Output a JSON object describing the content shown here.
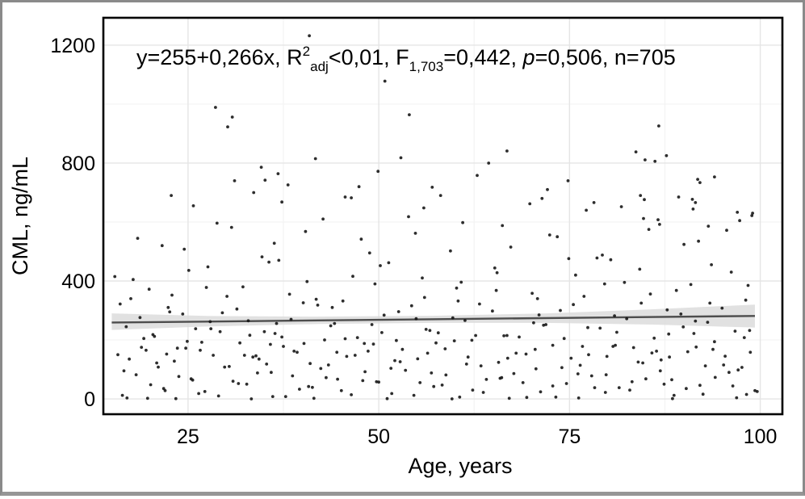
{
  "figure": {
    "kind": "scatter-plot-with-regression",
    "annotation_parts": [
      {
        "text": "y=255+0,266x, R",
        "style": "normal"
      },
      {
        "text": "2",
        "style": "sup"
      },
      {
        "text": "adj",
        "style": "sub"
      },
      {
        "text": "<0,01, F",
        "style": "normal"
      },
      {
        "text": "1,703",
        "style": "sub"
      },
      {
        "text": "=0,442, ",
        "style": "normal"
      },
      {
        "text": "p",
        "style": "italic"
      },
      {
        "text": "=0,506, n=705",
        "style": "normal"
      }
    ],
    "colors": {
      "text": "#000000",
      "panel_border": "#000000",
      "grid_major": "#e5e5e5",
      "grid_minor": "#f3f3f3",
      "point": "#161616",
      "regression_line": "#4d4d4d",
      "ci_band": "#d9d9d9",
      "frame_border": "#8a8a8a"
    }
  },
  "chart_data": {
    "type": "scatter",
    "title": "",
    "xlabel": "Age, years",
    "ylabel": "CML, ng/mL",
    "xlim": [
      13.9,
      102.9
    ],
    "ylim": [
      -52,
      1293
    ],
    "x_ticks": [
      25,
      50,
      75,
      100
    ],
    "x_minor_ticks": [
      37.5,
      62.5,
      87.5
    ],
    "y_ticks": [
      0,
      400,
      800,
      1200
    ],
    "y_minor_ticks": [
      200,
      600,
      1000
    ],
    "grid": "on",
    "legend": "none",
    "annotation": "y=255+0,266x, R2adj<0,01, F1,703=0,442, p=0,506, n=705",
    "stats": {
      "intercept": "255",
      "slope": "0,266",
      "r2_adj": "<0,01",
      "F_df": "1,703",
      "F": "0,442",
      "p": "0,506",
      "n": 705
    },
    "regression": {
      "line": [
        [
          15,
          259
        ],
        [
          99.3,
          281.4
        ]
      ],
      "ci_band": [
        [
          15,
          234,
          290
        ],
        [
          28,
          246,
          281
        ],
        [
          42,
          254,
          279
        ],
        [
          57,
          258,
          282
        ],
        [
          72,
          258,
          290
        ],
        [
          86,
          252,
          304
        ],
        [
          99.3,
          242,
          320
        ]
      ]
    },
    "points": [
      [
        40.9,
        1232
      ],
      [
        50.8,
        1078
      ],
      [
        28.6,
        989
      ],
      [
        30.8,
        956
      ],
      [
        30.2,
        923
      ],
      [
        54,
        964
      ],
      [
        86.7,
        926
      ],
      [
        52.9,
        818
      ],
      [
        66.8,
        841
      ],
      [
        41.7,
        815
      ],
      [
        83.7,
        838
      ],
      [
        87.7,
        825
      ],
      [
        84.9,
        811
      ],
      [
        86.2,
        806
      ],
      [
        34.6,
        786
      ],
      [
        36.8,
        764
      ],
      [
        35.1,
        742
      ],
      [
        31.1,
        740
      ],
      [
        38.1,
        726
      ],
      [
        94,
        753
      ],
      [
        91.8,
        745
      ],
      [
        92.1,
        734
      ],
      [
        74.8,
        740
      ],
      [
        72.1,
        710
      ],
      [
        78.2,
        666
      ],
      [
        45.6,
        685
      ],
      [
        46.4,
        682
      ],
      [
        37.3,
        668
      ],
      [
        84.3,
        690
      ],
      [
        84.8,
        676
      ],
      [
        89.3,
        685
      ],
      [
        91.1,
        677
      ],
      [
        91.5,
        666
      ],
      [
        91.2,
        644
      ],
      [
        97,
        633
      ],
      [
        98.9,
        622
      ],
      [
        86.6,
        608
      ],
      [
        86.8,
        592
      ],
      [
        93.2,
        586
      ],
      [
        22.8,
        690
      ],
      [
        57,
        718
      ],
      [
        16.4,
        12
      ],
      [
        20.1,
        48
      ],
      [
        23.8,
        76
      ],
      [
        27.2,
        25
      ],
      [
        30.9,
        60
      ],
      [
        34.1,
        88
      ],
      [
        37.8,
        8
      ],
      [
        41.3,
        39
      ],
      [
        44.6,
        67
      ],
      [
        48.2,
        92
      ],
      [
        51.7,
        18
      ],
      [
        55.4,
        55
      ],
      [
        58.8,
        81
      ],
      [
        62.3,
        30
      ],
      [
        65.9,
        70
      ],
      [
        69.4,
        5
      ],
      [
        72.8,
        44
      ],
      [
        76.1,
        85
      ],
      [
        79.7,
        22
      ],
      [
        83.2,
        58
      ],
      [
        86.9,
        95
      ],
      [
        90.3,
        35
      ],
      [
        94.1,
        73
      ],
      [
        98.2,
        15
      ],
      [
        18.2,
        82
      ],
      [
        22,
        28
      ],
      [
        25.6,
        64
      ],
      [
        29,
        10
      ],
      [
        32.7,
        50
      ],
      [
        35.9,
        90
      ],
      [
        39.6,
        33
      ],
      [
        43.1,
        72
      ],
      [
        46.4,
        14
      ],
      [
        50,
        57
      ],
      [
        53.5,
        97
      ],
      [
        57.2,
        42
      ],
      [
        60.6,
        6
      ],
      [
        64.1,
        66
      ],
      [
        67.7,
        86
      ],
      [
        71.2,
        24
      ],
      [
        74.6,
        52
      ],
      [
        77.9,
        78
      ],
      [
        81.5,
        38
      ],
      [
        85,
        68
      ],
      [
        88.7,
        12
      ],
      [
        92.1,
        46
      ],
      [
        95.9,
        90
      ],
      [
        99.3,
        28
      ],
      [
        17.3,
        135
      ],
      [
        21.1,
        108
      ],
      [
        24.7,
        172
      ],
      [
        28.3,
        148
      ],
      [
        31.8,
        190
      ],
      [
        35.3,
        118
      ],
      [
        38.9,
        162
      ],
      [
        42.4,
        103
      ],
      [
        45.8,
        144
      ],
      [
        49.3,
        186
      ],
      [
        52.8,
        126
      ],
      [
        56.4,
        155
      ],
      [
        59.9,
        197
      ],
      [
        63.4,
        112
      ],
      [
        66.9,
        138
      ],
      [
        70.5,
        168
      ],
      [
        74,
        106
      ],
      [
        77.5,
        150
      ],
      [
        81,
        182
      ],
      [
        84.6,
        122
      ],
      [
        88.1,
        142
      ],
      [
        91.6,
        176
      ],
      [
        95.2,
        115
      ],
      [
        98.7,
        158
      ],
      [
        19.5,
        165
      ],
      [
        23.2,
        128
      ],
      [
        26.8,
        192
      ],
      [
        30.4,
        110
      ],
      [
        33.9,
        146
      ],
      [
        37.5,
        178
      ],
      [
        41,
        120
      ],
      [
        44.5,
        158
      ],
      [
        48.1,
        188
      ],
      [
        51.6,
        104
      ],
      [
        55.1,
        136
      ],
      [
        58.7,
        170
      ],
      [
        62.2,
        199
      ],
      [
        65.7,
        124
      ],
      [
        69.3,
        152
      ],
      [
        72.8,
        182
      ],
      [
        76.4,
        114
      ],
      [
        79.9,
        144
      ],
      [
        83.4,
        174
      ],
      [
        87,
        132
      ],
      [
        90.5,
        160
      ],
      [
        94,
        194
      ],
      [
        97.6,
        107
      ],
      [
        16.9,
        245
      ],
      [
        20.6,
        212
      ],
      [
        24.3,
        288
      ],
      [
        27.9,
        262
      ],
      [
        31.4,
        305
      ],
      [
        35,
        228
      ],
      [
        38.5,
        270
      ],
      [
        42,
        318
      ],
      [
        45.6,
        204
      ],
      [
        49.1,
        252
      ],
      [
        52.6,
        296
      ],
      [
        56.2,
        236
      ],
      [
        59.7,
        275
      ],
      [
        63.2,
        322
      ],
      [
        66.8,
        215
      ],
      [
        70.3,
        258
      ],
      [
        73.8,
        300
      ],
      [
        77.4,
        242
      ],
      [
        80.9,
        282
      ],
      [
        84.4,
        325
      ],
      [
        88,
        220
      ],
      [
        91.5,
        264
      ],
      [
        95,
        308
      ],
      [
        98.6,
        232
      ],
      [
        18.7,
        276
      ],
      [
        22.4,
        310
      ],
      [
        26,
        238
      ],
      [
        29.5,
        292
      ],
      [
        33.1,
        216
      ],
      [
        36.6,
        256
      ],
      [
        40.1,
        326
      ],
      [
        43.7,
        248
      ],
      [
        47.2,
        208
      ],
      [
        50.7,
        284
      ],
      [
        54.3,
        316
      ],
      [
        57.8,
        224
      ],
      [
        61.3,
        266
      ],
      [
        64.9,
        298
      ],
      [
        68.4,
        210
      ],
      [
        71.9,
        252
      ],
      [
        75.5,
        320
      ],
      [
        79,
        240
      ],
      [
        82.5,
        272
      ],
      [
        86.1,
        206
      ],
      [
        89.6,
        288
      ],
      [
        93.1,
        260
      ],
      [
        96.7,
        230
      ],
      [
        17.8,
        405
      ],
      [
        22.9,
        352
      ],
      [
        27.6,
        448
      ],
      [
        32.2,
        380
      ],
      [
        36.9,
        470
      ],
      [
        41.8,
        338
      ],
      [
        46.6,
        416
      ],
      [
        51.3,
        462
      ],
      [
        56,
        344
      ],
      [
        60.8,
        396
      ],
      [
        65.5,
        428
      ],
      [
        70.1,
        358
      ],
      [
        74.9,
        476
      ],
      [
        79.6,
        390
      ],
      [
        84.2,
        440
      ],
      [
        89,
        368
      ],
      [
        93.6,
        455
      ],
      [
        98.1,
        335
      ],
      [
        19.9,
        372
      ],
      [
        25.1,
        436
      ],
      [
        30.1,
        348
      ],
      [
        35.6,
        464
      ],
      [
        40.6,
        398
      ],
      [
        45.3,
        332
      ],
      [
        50.2,
        452
      ],
      [
        55.7,
        410
      ],
      [
        60.2,
        376
      ],
      [
        65.2,
        444
      ],
      [
        70.8,
        340
      ],
      [
        75.8,
        420
      ],
      [
        80.4,
        472
      ],
      [
        85.6,
        356
      ],
      [
        90.9,
        388
      ],
      [
        96.2,
        430
      ],
      [
        18.4,
        545
      ],
      [
        24.5,
        508
      ],
      [
        30.7,
        582
      ],
      [
        36.3,
        528
      ],
      [
        42.7,
        610
      ],
      [
        48.8,
        495
      ],
      [
        54.8,
        562
      ],
      [
        61,
        598
      ],
      [
        67.3,
        515
      ],
      [
        73.4,
        550
      ],
      [
        79.3,
        488
      ],
      [
        85.4,
        575
      ],
      [
        91.9,
        535
      ],
      [
        97.3,
        605
      ],
      [
        21.6,
        520
      ],
      [
        28.8,
        596
      ],
      [
        34.7,
        482
      ],
      [
        40.4,
        568
      ],
      [
        47.7,
        542
      ],
      [
        53.9,
        618
      ],
      [
        59.4,
        502
      ],
      [
        66.2,
        588
      ],
      [
        72.4,
        556
      ],
      [
        78.6,
        478
      ],
      [
        84.7,
        612
      ],
      [
        90,
        524
      ],
      [
        95.6,
        572
      ],
      [
        99,
        630
      ],
      [
        17,
        3
      ],
      [
        21.8,
        35
      ],
      [
        26.4,
        18
      ],
      [
        31.6,
        52
      ],
      [
        36.1,
        8
      ],
      [
        40.8,
        42
      ],
      [
        45.1,
        28
      ],
      [
        49.7,
        58
      ],
      [
        54.6,
        12
      ],
      [
        58.3,
        47
      ],
      [
        63.7,
        22
      ],
      [
        68.9,
        55
      ],
      [
        73.2,
        6
      ],
      [
        78.3,
        38
      ],
      [
        82.9,
        30
      ],
      [
        87.4,
        50
      ],
      [
        92.5,
        16
      ],
      [
        96.4,
        44
      ],
      [
        99.6,
        25
      ],
      [
        19.2,
        205
      ],
      [
        23.6,
        172
      ],
      [
        28,
        238
      ],
      [
        32.4,
        148
      ],
      [
        36.4,
        222
      ],
      [
        40.2,
        188
      ],
      [
        44.2,
        256
      ],
      [
        48.6,
        162
      ],
      [
        52.3,
        198
      ],
      [
        56.7,
        232
      ],
      [
        61.7,
        142
      ],
      [
        66.4,
        214
      ],
      [
        71.6,
        250
      ],
      [
        76.7,
        178
      ],
      [
        81.2,
        226
      ],
      [
        85.8,
        156
      ],
      [
        89.9,
        244
      ],
      [
        93.8,
        168
      ],
      [
        97.9,
        208
      ],
      [
        16.6,
        95
      ],
      [
        20.9,
        122
      ],
      [
        25.4,
        68
      ],
      [
        29.8,
        108
      ],
      [
        34.3,
        135
      ],
      [
        38.7,
        78
      ],
      [
        43.4,
        115
      ],
      [
        47.9,
        62
      ],
      [
        52.1,
        130
      ],
      [
        56.9,
        88
      ],
      [
        61.5,
        118
      ],
      [
        66.1,
        72
      ],
      [
        70.6,
        102
      ],
      [
        75.2,
        138
      ],
      [
        79.8,
        82
      ],
      [
        84,
        125
      ],
      [
        88.4,
        65
      ],
      [
        92.8,
        112
      ],
      [
        97.1,
        98
      ],
      [
        17.5,
        340
      ],
      [
        22.6,
        295
      ],
      [
        27.4,
        378
      ],
      [
        32.9,
        265
      ],
      [
        38.3,
        355
      ],
      [
        43.9,
        310
      ],
      [
        49.5,
        390
      ],
      [
        54.9,
        272
      ],
      [
        60.4,
        332
      ],
      [
        65.4,
        368
      ],
      [
        71,
        285
      ],
      [
        76.9,
        348
      ],
      [
        82.2,
        395
      ],
      [
        87.8,
        302
      ],
      [
        93.4,
        325
      ],
      [
        98.4,
        385
      ],
      [
        18.9,
        175
      ],
      [
        20.4,
        218
      ],
      [
        22.2,
        152
      ],
      [
        24.9,
        195
      ],
      [
        26.6,
        165
      ],
      [
        29.2,
        228
      ],
      [
        33.5,
        142
      ],
      [
        35.8,
        185
      ],
      [
        37.3,
        210
      ],
      [
        39.3,
        158
      ],
      [
        42.9,
        200
      ],
      [
        46.9,
        148
      ],
      [
        50.4,
        225
      ],
      [
        53.1,
        168
      ],
      [
        57.5,
        190
      ],
      [
        62.7,
        215
      ],
      [
        68,
        155
      ],
      [
        74.3,
        205
      ],
      [
        80.7,
        178
      ],
      [
        86.4,
        162
      ],
      [
        91.3,
        222
      ],
      [
        95.4,
        145
      ],
      [
        23.4,
        1
      ],
      [
        41.5,
        2
      ],
      [
        59.6,
        0
      ],
      [
        76.2,
        3
      ],
      [
        88.5,
        1
      ],
      [
        33.3,
        0
      ],
      [
        67.1,
        2
      ],
      [
        51.1,
        1
      ],
      [
        96.9,
        4
      ],
      [
        19.7,
        2
      ],
      [
        25.7,
        655
      ],
      [
        33.6,
        700
      ],
      [
        47.4,
        720
      ],
      [
        58.1,
        690
      ],
      [
        62.9,
        758
      ],
      [
        69.8,
        662
      ],
      [
        55.9,
        648
      ],
      [
        77.2,
        640
      ],
      [
        81.8,
        652
      ],
      [
        49.9,
        772
      ],
      [
        64.4,
        800
      ],
      [
        71.4,
        680
      ],
      [
        15.4,
        415
      ],
      [
        15.8,
        150
      ],
      [
        16.1,
        322
      ]
    ]
  }
}
